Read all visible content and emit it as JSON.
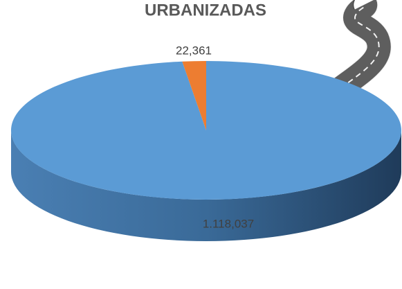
{
  "chart_data": {
    "type": "pie",
    "title": "URBANIZADAS",
    "values": [
      1118.037,
      22.361
    ],
    "value_labels": [
      "1.118,037",
      "22,361"
    ],
    "colors": [
      "#5b9bd5",
      "#ed7d31"
    ]
  }
}
